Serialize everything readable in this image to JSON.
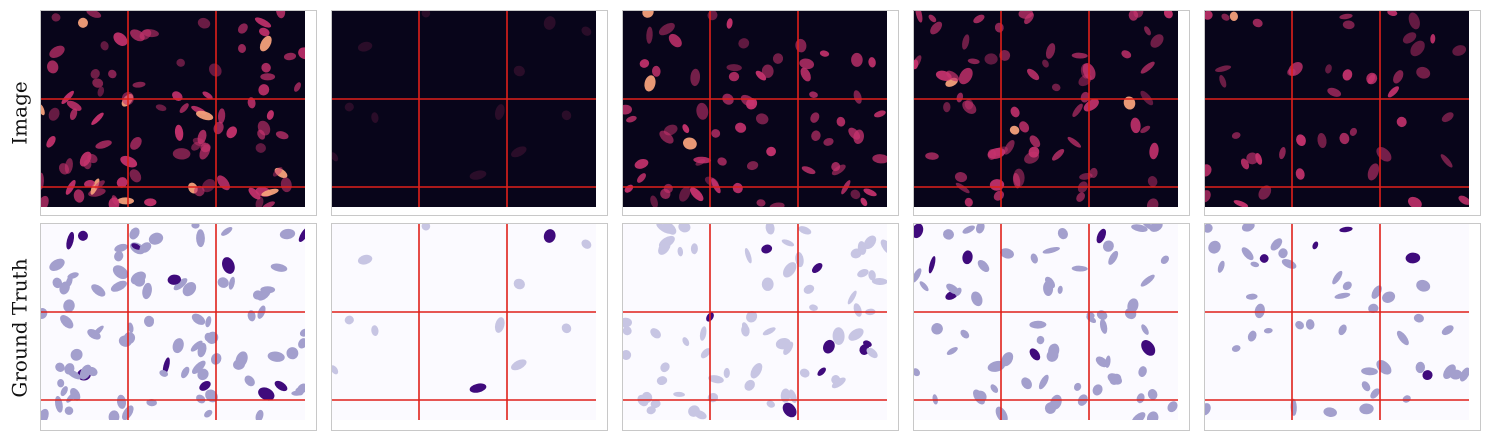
{
  "rows": [
    {
      "label": "Image",
      "kind": "image"
    },
    {
      "label": "Ground Truth",
      "kind": "truth"
    }
  ],
  "columns": [
    {
      "density": "high",
      "dim": false
    },
    {
      "density": "sparse",
      "dim": true
    },
    {
      "density": "medium",
      "dim": false
    },
    {
      "density": "medium",
      "dim": false
    },
    {
      "density": "low",
      "dim": false
    }
  ],
  "colors": {
    "image_background": "#08051a",
    "image_cell": "#c8336e",
    "image_cell_bright": "#f4a07a",
    "truth_background": "#fbfaff",
    "truth_cell": "#a39fcd",
    "truth_cell_light": "#c7c5e3",
    "truth_cell_dark": "#3f0a7c",
    "grid_line": "#e0201a",
    "frame": "#c8c8c8"
  }
}
